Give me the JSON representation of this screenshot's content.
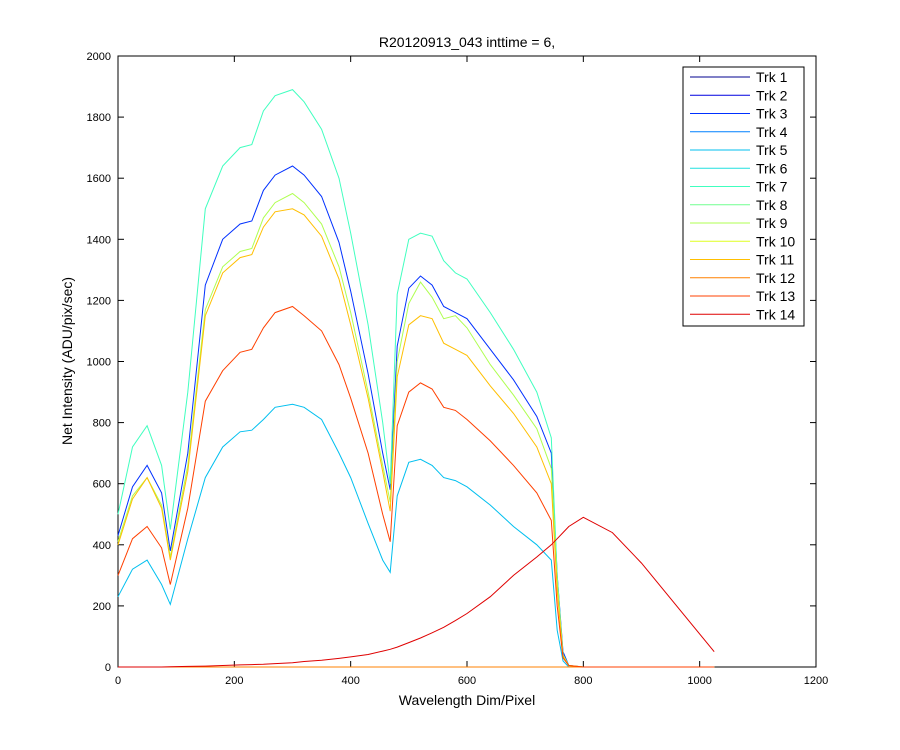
{
  "chart_data": {
    "type": "line",
    "title": "R20120913_043 inttime = 6,",
    "xlabel": "Wavelength Dim/Pixel",
    "ylabel": "Net Intensity (ADU/pix/sec)",
    "xlim": [
      0,
      1200
    ],
    "ylim": [
      0,
      2000
    ],
    "xticks": [
      0,
      200,
      400,
      600,
      800,
      1000,
      1200
    ],
    "yticks": [
      0,
      200,
      400,
      600,
      800,
      1000,
      1200,
      1400,
      1600,
      1800,
      2000
    ],
    "grid": false,
    "legend_position": "top-right",
    "x": [
      0,
      25,
      50,
      75,
      90,
      120,
      150,
      180,
      210,
      230,
      250,
      270,
      300,
      320,
      350,
      380,
      400,
      430,
      455,
      468,
      480,
      500,
      520,
      540,
      560,
      580,
      600,
      640,
      680,
      720,
      745,
      755,
      765,
      775,
      800,
      850,
      900,
      1025
    ],
    "series": [
      {
        "name": "Trk 1",
        "color": "#00008f",
        "values": [
          0,
          0,
          0,
          0,
          0,
          0,
          0,
          0,
          0,
          0,
          0,
          0,
          0,
          0,
          0,
          0,
          0,
          0,
          0,
          0,
          0,
          0,
          0,
          0,
          0,
          0,
          0,
          0,
          0,
          0,
          0,
          0,
          0,
          0,
          0,
          0,
          0,
          0
        ]
      },
      {
        "name": "Trk 2",
        "color": "#0000df",
        "values": [
          0,
          0,
          0,
          0,
          0,
          0,
          0,
          0,
          0,
          0,
          0,
          0,
          0,
          0,
          0,
          0,
          0,
          0,
          0,
          0,
          0,
          0,
          0,
          0,
          0,
          0,
          0,
          0,
          0,
          0,
          0,
          0,
          0,
          0,
          0,
          0,
          0,
          0
        ]
      },
      {
        "name": "Trk 3",
        "color": "#0030ff",
        "values": [
          430,
          590,
          660,
          570,
          380,
          700,
          1250,
          1400,
          1450,
          1460,
          1560,
          1610,
          1640,
          1610,
          1540,
          1390,
          1230,
          960,
          700,
          580,
          1050,
          1240,
          1280,
          1250,
          1180,
          1160,
          1140,
          1040,
          940,
          820,
          700,
          300,
          50,
          5,
          0,
          0,
          0,
          0
        ]
      },
      {
        "name": "Trk 4",
        "color": "#0080ff",
        "values": [
          0,
          0,
          0,
          0,
          0,
          0,
          0,
          0,
          0,
          0,
          0,
          0,
          0,
          0,
          0,
          0,
          0,
          0,
          0,
          0,
          0,
          0,
          0,
          0,
          0,
          0,
          0,
          0,
          0,
          0,
          0,
          0,
          0,
          0,
          0,
          0,
          0,
          0
        ]
      },
      {
        "name": "Trk 5",
        "color": "#00bfef",
        "values": [
          230,
          320,
          350,
          270,
          205,
          420,
          620,
          720,
          770,
          775,
          810,
          850,
          860,
          850,
          810,
          700,
          620,
          470,
          350,
          310,
          560,
          670,
          680,
          660,
          620,
          610,
          590,
          530,
          460,
          400,
          350,
          120,
          20,
          0,
          0,
          0,
          0,
          0
        ]
      },
      {
        "name": "Trk 6",
        "color": "#20e0df",
        "values": [
          0,
          0,
          0,
          0,
          0,
          0,
          0,
          0,
          0,
          0,
          0,
          0,
          0,
          0,
          0,
          0,
          0,
          0,
          0,
          0,
          0,
          0,
          0,
          0,
          0,
          0,
          0,
          0,
          0,
          0,
          0,
          0,
          0,
          0,
          0,
          0,
          0,
          0
        ]
      },
      {
        "name": "Trk 7",
        "color": "#40ffbf",
        "values": [
          500,
          720,
          790,
          660,
          450,
          900,
          1500,
          1640,
          1700,
          1710,
          1820,
          1870,
          1890,
          1850,
          1760,
          1600,
          1420,
          1120,
          800,
          600,
          1220,
          1400,
          1420,
          1410,
          1330,
          1290,
          1270,
          1160,
          1040,
          900,
          750,
          300,
          40,
          5,
          0,
          0,
          0,
          0
        ]
      },
      {
        "name": "Trk 8",
        "color": "#70ff8f",
        "values": [
          0,
          0,
          0,
          0,
          0,
          0,
          0,
          0,
          0,
          0,
          0,
          0,
          0,
          0,
          0,
          0,
          0,
          0,
          0,
          0,
          0,
          0,
          0,
          0,
          0,
          0,
          0,
          0,
          0,
          0,
          0,
          0,
          0,
          0,
          0,
          0,
          0,
          0
        ]
      },
      {
        "name": "Trk 9",
        "color": "#afff50",
        "values": [
          410,
          560,
          620,
          530,
          360,
          660,
          1170,
          1310,
          1360,
          1370,
          1470,
          1520,
          1550,
          1520,
          1450,
          1310,
          1160,
          900,
          660,
          540,
          1000,
          1190,
          1260,
          1210,
          1140,
          1150,
          1110,
          990,
          890,
          780,
          650,
          280,
          40,
          5,
          0,
          0,
          0,
          0
        ]
      },
      {
        "name": "Trk 10",
        "color": "#dfff20",
        "values": [
          0,
          0,
          0,
          0,
          0,
          0,
          0,
          0,
          0,
          0,
          0,
          0,
          0,
          0,
          0,
          0,
          0,
          0,
          0,
          0,
          0,
          0,
          0,
          0,
          0,
          0,
          0,
          0,
          0,
          0,
          0,
          0,
          0,
          0,
          0,
          0,
          0,
          0
        ]
      },
      {
        "name": "Trk 11",
        "color": "#ffbf00",
        "values": [
          400,
          550,
          620,
          520,
          350,
          640,
          1150,
          1290,
          1340,
          1350,
          1440,
          1490,
          1500,
          1480,
          1410,
          1270,
          1120,
          880,
          640,
          510,
          950,
          1120,
          1150,
          1140,
          1060,
          1040,
          1020,
          920,
          830,
          720,
          600,
          250,
          35,
          5,
          0,
          0,
          0,
          0
        ]
      },
      {
        "name": "Trk 12",
        "color": "#ff8000",
        "values": [
          0,
          0,
          0,
          0,
          0,
          0,
          0,
          0,
          0,
          0,
          0,
          0,
          0,
          0,
          0,
          0,
          0,
          0,
          0,
          0,
          0,
          0,
          0,
          0,
          0,
          0,
          0,
          0,
          0,
          0,
          0,
          0,
          0,
          0,
          0,
          0,
          0,
          0
        ]
      },
      {
        "name": "Trk 13",
        "color": "#ff4000",
        "values": [
          300,
          420,
          460,
          390,
          270,
          520,
          870,
          970,
          1030,
          1040,
          1110,
          1160,
          1180,
          1150,
          1100,
          990,
          880,
          700,
          500,
          410,
          790,
          900,
          930,
          910,
          850,
          840,
          810,
          740,
          660,
          570,
          480,
          200,
          30,
          5,
          0,
          0,
          0,
          0
        ]
      },
      {
        "name": "Trk 14",
        "color": "#df0000",
        "values": [
          0,
          0,
          0,
          0,
          1,
          2,
          3,
          5,
          7,
          8,
          9,
          11,
          14,
          18,
          22,
          28,
          33,
          41,
          52,
          58,
          65,
          80,
          95,
          112,
          130,
          152,
          175,
          230,
          300,
          360,
          400,
          420,
          440,
          460,
          490,
          440,
          340,
          50
        ]
      }
    ]
  }
}
